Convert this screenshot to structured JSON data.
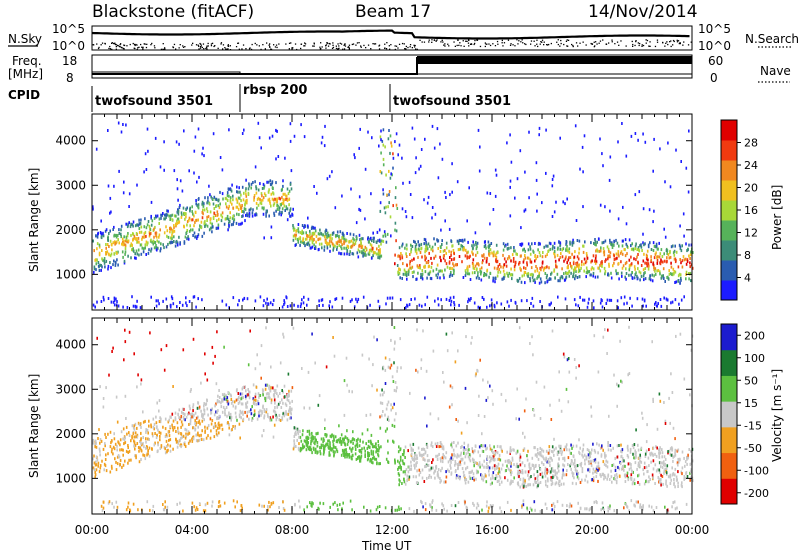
{
  "header": {
    "station": "Blackstone (fitACF)",
    "beam": "Beam 17",
    "date": "14/Nov/2014"
  },
  "noise_panel": {
    "left_label": "N.Sky",
    "right_label": "N.Search",
    "ticks_left": [
      "10^5",
      "10^0"
    ],
    "ticks_right": [
      "10^5",
      "10^0"
    ]
  },
  "freq_panel": {
    "left_label_1": "Freq.",
    "left_label_2": "[MHz]",
    "right_label": "Nave",
    "ticks_left": [
      "18",
      "8"
    ],
    "ticks_right": [
      "60",
      "0"
    ]
  },
  "cpid": {
    "label": "CPID",
    "segments": [
      {
        "name": "twofsound 3501",
        "start_hr": 0,
        "end_hr": 6.0
      },
      {
        "name": "rbsp 200",
        "start_hr": 6.0,
        "end_hr": 11.9
      },
      {
        "name": "twofsound 3501",
        "start_hr": 11.9,
        "end_hr": 24
      }
    ]
  },
  "chart_data": [
    {
      "type": "heatmap",
      "parameter": "Power",
      "ylabel": "Slant Range [km]",
      "yticks": [
        "1000",
        "2000",
        "3000",
        "4000"
      ],
      "ylim": [
        200,
        4600
      ],
      "colorbar_label": "Power [dB]",
      "colorbar_ticks": [
        "4",
        "8",
        "12",
        "16",
        "20",
        "24",
        "28"
      ],
      "colorbar_range": [
        0,
        32
      ],
      "colors": [
        "#1c1cff",
        "#2a5cb0",
        "#3c8c78",
        "#56b25a",
        "#a8d838",
        "#f0c020",
        "#f08820",
        "#f03a10",
        "#e00000"
      ],
      "features": [
        {
          "from_hr": 0,
          "to_hr": 12,
          "note": "main band ~1100-1800 km rising to ~2600 km"
        },
        {
          "from_hr": 12,
          "to_hr": 24,
          "note": "strong band ~900-1700 km after 12 UT"
        }
      ]
    },
    {
      "type": "heatmap",
      "parameter": "Velocity",
      "ylabel": "Slant Range [km]",
      "yticks": [
        "1000",
        "2000",
        "3000",
        "4000"
      ],
      "ylim": [
        200,
        4600
      ],
      "colorbar_label": "Velocity [m s⁻¹]",
      "colorbar_ticks": [
        "200",
        "100",
        "50",
        "15",
        "-15",
        "-50",
        "-100",
        "-200"
      ],
      "colors": [
        "#1c1ccf",
        "#1a7a30",
        "#5cc040",
        "#c8c8c8",
        "#f0a020",
        "#f06010",
        "#e00000"
      ]
    }
  ],
  "x_axis": {
    "ticks": [
      "00:00",
      "04:00",
      "08:00",
      "12:00",
      "16:00",
      "20:00",
      "00:00"
    ],
    "label": "Time UT"
  }
}
